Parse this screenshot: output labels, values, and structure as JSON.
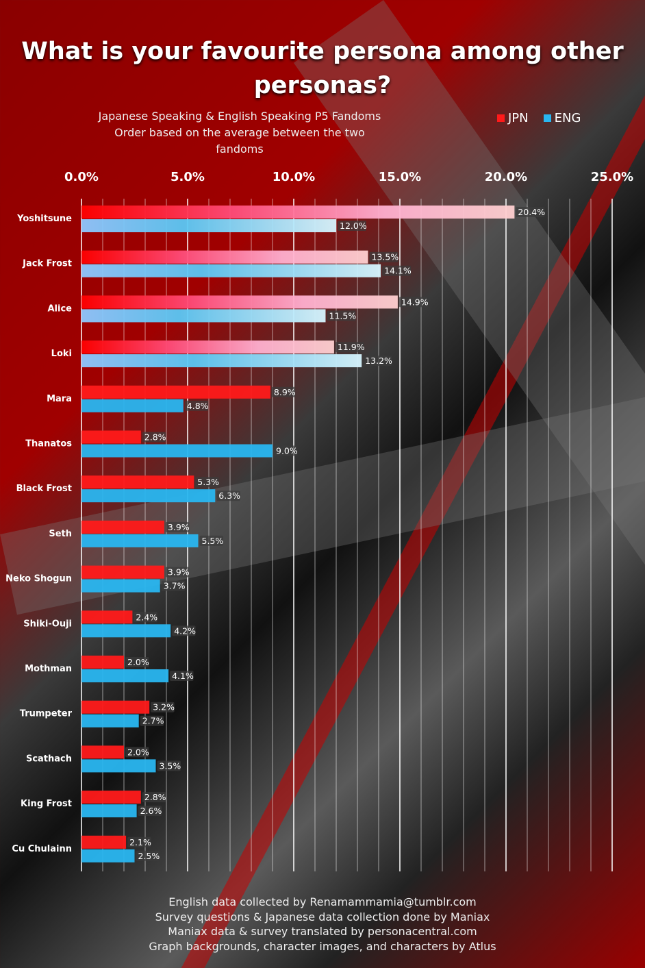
{
  "chart_data": {
    "type": "bar",
    "orientation": "horizontal",
    "title": "What is your favourite persona among other personas?",
    "subtitle": [
      "Japanese Speaking & English Speaking P5 Fandoms",
      "Order based on the average between the two fandoms"
    ],
    "xlim": [
      0,
      25
    ],
    "tick_labels": [
      "0.0%",
      "5.0%",
      "10.0%",
      "15.0%",
      "20.0%",
      "25.0%"
    ],
    "grid": true,
    "legend_position": "top-right",
    "categories": [
      "Yoshitsune",
      "Jack Frost",
      "Alice",
      "Loki",
      "Mara",
      "Thanatos",
      "Black Frost",
      "Seth",
      "Neko Shogun",
      "Shiki-Ouji",
      "Mothman",
      "Trumpeter",
      "Scathach",
      "King Frost",
      "Cu Chulainn"
    ],
    "series": [
      {
        "name": "JPN",
        "color": "#ff1a1a",
        "values": [
          20.4,
          13.5,
          14.9,
          11.9,
          8.9,
          2.8,
          5.3,
          3.9,
          3.9,
          2.4,
          2.0,
          3.2,
          2.0,
          2.8,
          2.1
        ]
      },
      {
        "name": "ENG",
        "color": "#29b6f0",
        "values": [
          12.0,
          14.1,
          11.5,
          13.2,
          4.8,
          9.0,
          6.3,
          5.5,
          3.7,
          4.2,
          4.1,
          2.7,
          3.5,
          2.6,
          2.5
        ]
      }
    ]
  },
  "footer": [
    "English data collected by Renamammamia@tumblr.com",
    "Survey questions & Japanese data collection done by Maniax",
    "Maniax data & survey translated by personacentral.com",
    "Graph backgrounds, character images, and characters by Atlus"
  ]
}
